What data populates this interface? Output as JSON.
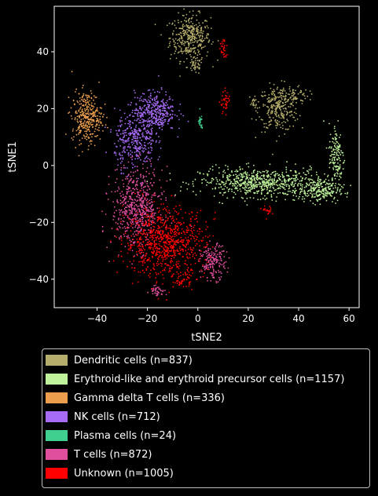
{
  "chart_data": {
    "type": "scatter",
    "title": "",
    "xlabel": "tSNE2",
    "ylabel": "tSNE1",
    "xlim": [
      -57,
      64
    ],
    "ylim": [
      -50,
      56
    ],
    "xticks": [
      -40,
      -20,
      0,
      20,
      40,
      60
    ],
    "yticks": [
      -40,
      -20,
      0,
      20,
      40
    ],
    "grid": false,
    "legend_position": "below",
    "series": [
      {
        "name": "Dendritic cells (n=837)",
        "color": "#b5ad6b",
        "count": 837
      },
      {
        "name": "Erythroid-like and erythroid precursor cells (n=1157)",
        "color": "#bff29b",
        "count": 1157
      },
      {
        "name": "Gamma delta T cells (n=336)",
        "color": "#ec9e4e",
        "count": 336
      },
      {
        "name": "NK cells (n=712)",
        "color": "#a66bf4",
        "count": 712
      },
      {
        "name": "Plasma cells (n=24)",
        "color": "#3fcf8e",
        "count": 24
      },
      {
        "name": "T cells (n=872)",
        "color": "#e04f9e",
        "count": 872
      },
      {
        "name": "Unknown (n=1005)",
        "color": "#ff0000",
        "count": 1005
      }
    ],
    "clusters": [
      {
        "series": 0,
        "cx": -3,
        "cy": 45,
        "sx": 4,
        "sy": 4,
        "n": 360
      },
      {
        "series": 0,
        "cx": -1,
        "cy": 35,
        "sx": 1.5,
        "sy": 1.5,
        "n": 40
      },
      {
        "series": 0,
        "cx": 32,
        "cy": 20,
        "sx": 4,
        "sy": 4,
        "n": 280
      },
      {
        "series": 0,
        "cx": 38,
        "cy": 25,
        "sx": 3,
        "sy": 1.5,
        "n": 60
      },
      {
        "series": 0,
        "cx": 22,
        "cy": 22,
        "sx": 1,
        "sy": 1,
        "n": 20
      },
      {
        "series": 1,
        "cx": 25,
        "cy": -6,
        "sx": 12,
        "sy": 2.5,
        "n": 700
      },
      {
        "series": 1,
        "cx": 48,
        "cy": -9,
        "sx": 4,
        "sy": 2,
        "n": 200
      },
      {
        "series": 1,
        "cx": 55,
        "cy": 3,
        "sx": 1.5,
        "sy": 6,
        "n": 150
      },
      {
        "series": 2,
        "cx": -44,
        "cy": 17,
        "sx": 3,
        "sy": 4.5,
        "n": 336
      },
      {
        "series": 3,
        "cx": -17,
        "cy": 19,
        "sx": 4,
        "sy": 3.5,
        "n": 360
      },
      {
        "series": 3,
        "cx": -25,
        "cy": 9,
        "sx": 4,
        "sy": 5,
        "n": 340
      },
      {
        "series": 4,
        "cx": 1,
        "cy": 15,
        "sx": 0.5,
        "sy": 1.5,
        "n": 24
      },
      {
        "series": 5,
        "cx": -24,
        "cy": -15,
        "sx": 5,
        "sy": 7,
        "n": 600
      },
      {
        "series": 5,
        "cx": 6,
        "cy": -34,
        "sx": 2.5,
        "sy": 3,
        "n": 180
      },
      {
        "series": 5,
        "cx": -16,
        "cy": -44,
        "sx": 1.5,
        "sy": 1,
        "n": 40
      },
      {
        "series": 6,
        "cx": -13,
        "cy": -27,
        "sx": 8,
        "sy": 6,
        "n": 820
      },
      {
        "series": 6,
        "cx": 10,
        "cy": 41,
        "sx": 0.8,
        "sy": 2,
        "n": 30
      },
      {
        "series": 6,
        "cx": 11,
        "cy": 22,
        "sx": 1,
        "sy": 2,
        "n": 40
      },
      {
        "series": 6,
        "cx": 28,
        "cy": -16,
        "sx": 1,
        "sy": 1,
        "n": 20
      },
      {
        "series": 6,
        "cx": -6,
        "cy": -40,
        "sx": 2,
        "sy": 1.5,
        "n": 40
      }
    ]
  }
}
